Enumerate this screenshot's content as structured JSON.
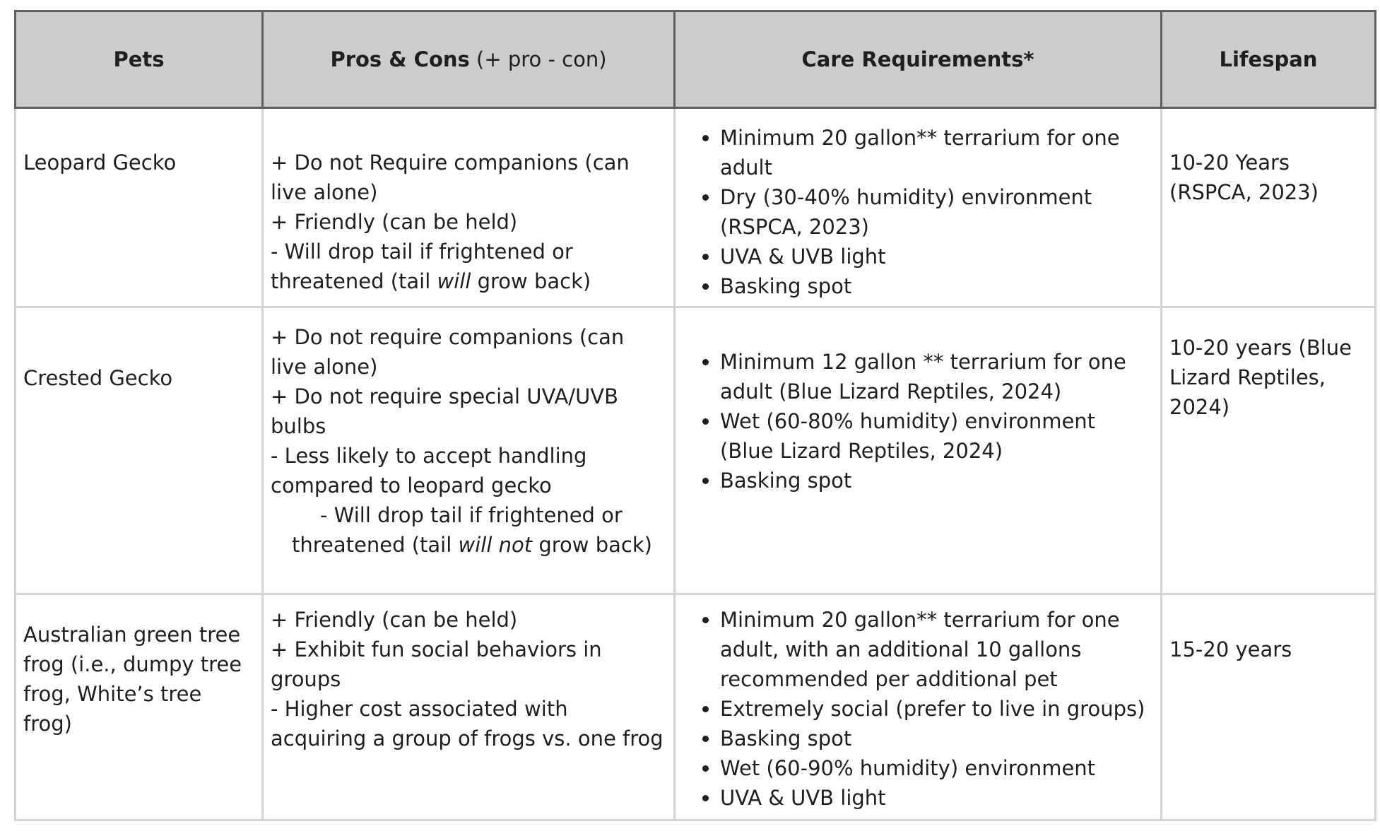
{
  "header": {
    "pets": "Pets",
    "pros_cons_bold": "Pros & Cons",
    "pros_cons_note": " (+ pro - con)",
    "care": "Care Requirements*",
    "lifespan": "Lifespan"
  },
  "rows": [
    {
      "pet": "Leopard Gecko",
      "pros": {
        "l1": "+ Do not Require companions (can live alone)",
        "l2": "+ Friendly (can be held)",
        "l3a": "- Will drop tail if frightened or threatened (tail ",
        "l3b": "will",
        "l3c": " grow back)"
      },
      "care": [
        "Minimum 20 gallon** terrarium for one adult",
        "Dry (30-40% humidity) environment (RSPCA, 2023)",
        "UVA & UVB light",
        "Basking spot"
      ],
      "lifespan": "10-20 Years (RSPCA, 2023)"
    },
    {
      "pet": "Crested Gecko",
      "pros": {
        "l1": "+ Do not require companions (can live alone)",
        "l2": "+ Do not require special UVA/UVB bulbs",
        "l3": "- Less likely to accept handling compared to leopard gecko",
        "l4a": "- Will drop tail if frightened or",
        "l4b": "threatened (tail ",
        "l4c": "will not",
        "l4d": " grow back)"
      },
      "care": [
        "Minimum 12 gallon ** terrarium for one adult (Blue Lizard Reptiles, 2024)",
        "Wet (60-80% humidity) environment (Blue Lizard Reptiles, 2024)",
        "Basking spot"
      ],
      "lifespan": "10-20 years (Blue Lizard Reptiles, 2024)"
    },
    {
      "pet": "Australian green tree frog (i.e., dumpy tree frog, White’s tree frog)",
      "pros": {
        "l1": "+ Friendly (can be held)",
        "l2": "+ Exhibit fun social behaviors in groups",
        "l3": "- Higher cost associated with acquiring a group of frogs vs. one frog"
      },
      "care": [
        "Minimum 20 gallon** terrarium for one adult, with an additional 10 gallons recommended per additional pet",
        "Extremely social (prefer to live in groups)",
        "Basking spot",
        "Wet (60-90% humidity) environment",
        "UVA & UVB light"
      ],
      "lifespan": "15-20 years"
    }
  ]
}
